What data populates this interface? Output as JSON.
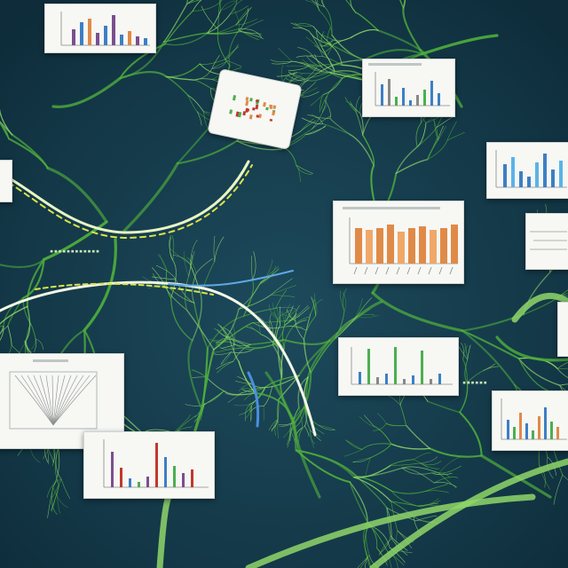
{
  "palette": {
    "background": "#14384a",
    "vein": "#4fae3c",
    "vein_light": "#8fd66a",
    "card": "#f7f7f4",
    "bar_purple": "#7a4f8f",
    "bar_blue": "#3d7fc4",
    "bar_orange": "#e08a48",
    "bar_green": "#4caf50",
    "bar_red": "#c0392b",
    "cable_yellow": "#d9e34a"
  },
  "icons": [
    "leaf-vein-network",
    "glowing-cable",
    "chart-card"
  ],
  "cards": [
    {
      "id": "top-left",
      "type": "bar"
    },
    {
      "id": "top-right",
      "type": "bar"
    },
    {
      "id": "tilted",
      "type": "scatter"
    },
    {
      "id": "right-upper",
      "type": "bar"
    },
    {
      "id": "center-right",
      "type": "bar"
    },
    {
      "id": "far-right",
      "type": "line"
    },
    {
      "id": "middle-right",
      "type": "bar"
    },
    {
      "id": "left-tree",
      "type": "diagram"
    },
    {
      "id": "bottom-center",
      "type": "bar"
    },
    {
      "id": "bottom-right",
      "type": "bar"
    }
  ]
}
